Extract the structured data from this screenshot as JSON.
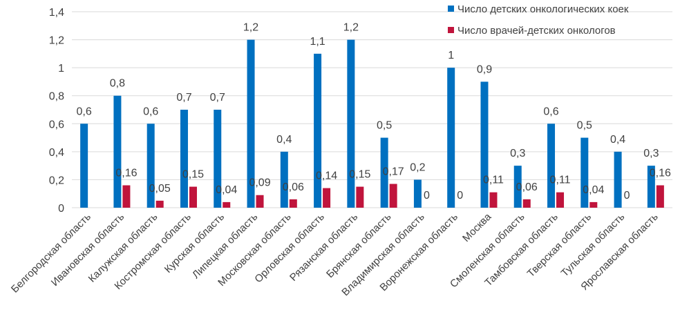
{
  "chart_data": {
    "type": "bar",
    "title": "",
    "xlabel": "",
    "ylabel": "",
    "ylim": [
      0,
      1.4
    ],
    "yticks": [
      "0",
      "0,2",
      "0,4",
      "0,6",
      "0,8",
      "1",
      "1,2",
      "1,4"
    ],
    "grid": true,
    "legend_position": "top-right",
    "categories": [
      "Белгородская область",
      "Ивановская область",
      "Калужская область",
      "Костромская область",
      "Курская область",
      "Липецкая область",
      "Московская область",
      "Орловская область",
      "Рязанская область",
      "Брянская область",
      "Владимирская область",
      "Воронежская область",
      "Москва",
      "Смоленская область",
      "Тамбовская область",
      "Тверская область",
      "Тульская область",
      "Ярославская область"
    ],
    "series": [
      {
        "name": "Число детских онкологических коек",
        "color": "#0070c0",
        "values": [
          0.6,
          0.8,
          0.6,
          0.7,
          0.7,
          1.2,
          0.4,
          1.1,
          1.2,
          0.5,
          0.2,
          1,
          0.9,
          0.3,
          0.6,
          0.5,
          0.4,
          0.3
        ],
        "labels": [
          "0,6",
          "0,8",
          "0,6",
          "0,7",
          "0,7",
          "1,2",
          "0,4",
          "1,1",
          "1,2",
          "0,5",
          "0,2",
          "1",
          "0,9",
          "0,3",
          "0,6",
          "0,5",
          "0,4",
          "0,3"
        ]
      },
      {
        "name": "Число врачей-детских онкологов",
        "color": "#c0143c",
        "values": [
          null,
          0.16,
          0.05,
          0.15,
          0.04,
          0.09,
          0.06,
          0.14,
          0.15,
          0.17,
          0,
          0,
          0.11,
          0.06,
          0.11,
          0.04,
          0,
          0.16
        ],
        "labels": [
          "",
          "0,16",
          "0,05",
          "0,15",
          "0,04",
          "0,09",
          "0,06",
          "0,14",
          "0,15",
          "0,17",
          "0",
          "0",
          "0,11",
          "0,06",
          "0,11",
          "0,04",
          "0",
          "0,16"
        ]
      }
    ]
  }
}
